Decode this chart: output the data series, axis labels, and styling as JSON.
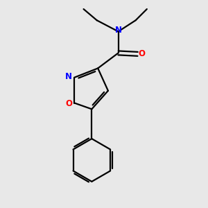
{
  "background_color": "#e8e8e8",
  "bond_color": "#000000",
  "N_color": "#0000ff",
  "O_color": "#ff0000",
  "figsize": [
    3.0,
    3.0
  ],
  "dpi": 100,
  "xlim": [
    0,
    10
  ],
  "ylim": [
    0,
    10
  ]
}
